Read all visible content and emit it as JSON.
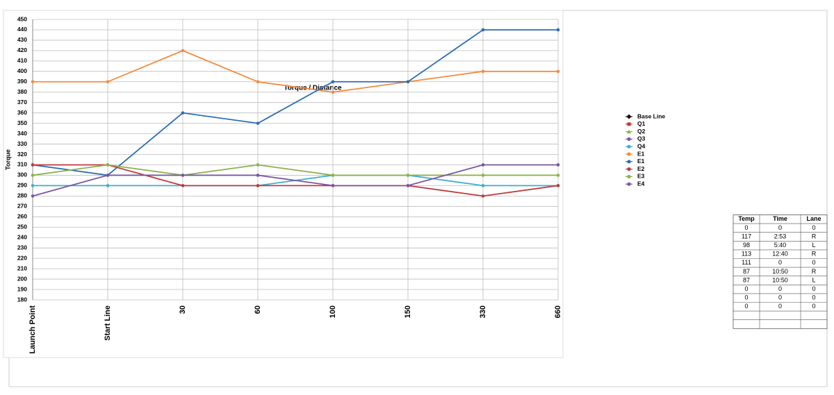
{
  "chart_data": {
    "type": "line",
    "title": "Torque / Distance",
    "y_label": "Torque",
    "categories": [
      "Launch Point",
      "Start Line",
      "30",
      "60",
      "100",
      "150",
      "330",
      "660"
    ],
    "ylim": [
      180,
      450
    ],
    "yticks": [
      180,
      190,
      200,
      210,
      220,
      230,
      240,
      250,
      260,
      270,
      280,
      290,
      300,
      310,
      320,
      330,
      340,
      350,
      360,
      370,
      380,
      390,
      400,
      410,
      420,
      430,
      440,
      450
    ],
    "grid": true,
    "legend": "right",
    "series": [
      {
        "name": "Base Line",
        "color": "#111111",
        "marker": "diamond",
        "values": [
          null,
          null,
          null,
          null,
          null,
          null,
          null,
          null
        ]
      },
      {
        "name": "Q1",
        "color": "#c0393b",
        "marker": "square",
        "values": [
          null,
          null,
          null,
          null,
          null,
          null,
          null,
          null
        ]
      },
      {
        "name": "Q2",
        "color": "#8bb34a",
        "marker": "triangle",
        "values": [
          null,
          null,
          null,
          null,
          null,
          null,
          null,
          null
        ]
      },
      {
        "name": "Q3",
        "color": "#7a55a3",
        "marker": "circle",
        "values": [
          null,
          null,
          null,
          null,
          null,
          null,
          null,
          null
        ]
      },
      {
        "name": "Q4",
        "color": "#3aaed0",
        "marker": "circle",
        "values": [
          290,
          290,
          290,
          290,
          300,
          300,
          290,
          290
        ]
      },
      {
        "name": "E1",
        "color": "#f58a3c",
        "marker": "circle",
        "values": [
          390,
          390,
          420,
          390,
          380,
          390,
          400,
          400
        ]
      },
      {
        "name": "E1",
        "color": "#2a6db5",
        "marker": "circle",
        "values": [
          310,
          300,
          360,
          350,
          390,
          390,
          440,
          440
        ]
      },
      {
        "name": "E2",
        "color": "#c0393b",
        "marker": "circle",
        "values": [
          310,
          310,
          290,
          290,
          290,
          290,
          280,
          290
        ]
      },
      {
        "name": "E3",
        "color": "#8bb34a",
        "marker": "circle",
        "values": [
          300,
          310,
          300,
          310,
          300,
          300,
          300,
          300
        ]
      },
      {
        "name": "E4",
        "color": "#7a55a3",
        "marker": "circle",
        "values": [
          280,
          300,
          300,
          300,
          290,
          290,
          310,
          310
        ]
      }
    ]
  },
  "table": {
    "columns": [
      "Temp",
      "Time",
      "Lane"
    ],
    "rows": [
      [
        0,
        0,
        0
      ],
      [
        117,
        "2:53",
        "R"
      ],
      [
        98,
        "5:40",
        "L"
      ],
      [
        113,
        "12:40",
        "R"
      ],
      [
        111,
        0,
        0
      ],
      [
        87,
        "10:50",
        "R"
      ],
      [
        87,
        "10:50",
        "L"
      ],
      [
        0,
        0,
        0
      ],
      [
        0,
        0,
        0
      ],
      [
        0,
        0,
        0
      ]
    ]
  }
}
